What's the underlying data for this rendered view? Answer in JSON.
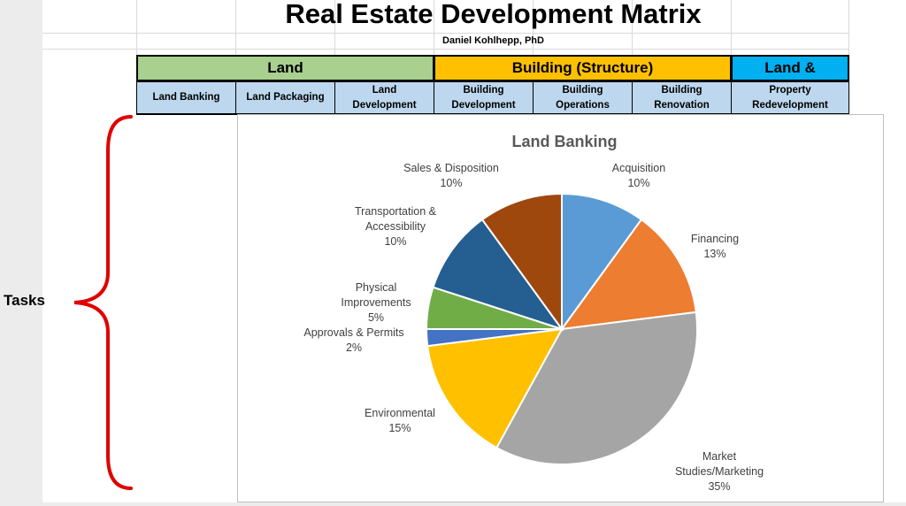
{
  "header": {
    "title": "Real Estate Development Matrix",
    "author": "Daniel Kohlhepp, PhD"
  },
  "groups": [
    {
      "label": "Land",
      "color": "#a9d08e"
    },
    {
      "label": "Building (Structure)",
      "color": "#ffc000"
    },
    {
      "label": "Land & Building",
      "color": "#00b0f0"
    }
  ],
  "subheaders": [
    "Land Banking",
    "Land Packaging",
    "Land Development",
    "Building Development",
    "Building Operations",
    "Building Renovation",
    "Property Redevelopment"
  ],
  "side_label": "Tasks",
  "chart_data": {
    "type": "pie",
    "title": "Land Banking",
    "slices": [
      {
        "label": "Acquisition",
        "value": 10,
        "display": "10%",
        "color": "#5b9bd5"
      },
      {
        "label": "Financing",
        "value": 13,
        "display": "13%",
        "color": "#ed7d31"
      },
      {
        "label": "Market Studies/Marketing",
        "value": 35,
        "display": "35%",
        "color": "#a5a5a5"
      },
      {
        "label": "Environmental",
        "value": 15,
        "display": "15%",
        "color": "#ffc000"
      },
      {
        "label": "Approvals & Permits",
        "value": 2,
        "display": "2%",
        "color": "#4472c4"
      },
      {
        "label": "Physical Improvements",
        "value": 5,
        "display": "5%",
        "color": "#70ad47"
      },
      {
        "label": "Transportation & Accessibility",
        "value": 10,
        "display": "10%",
        "color": "#255e91"
      },
      {
        "label": "Sales & Disposition",
        "value": 10,
        "display": "10%",
        "color": "#9e480e"
      }
    ]
  }
}
